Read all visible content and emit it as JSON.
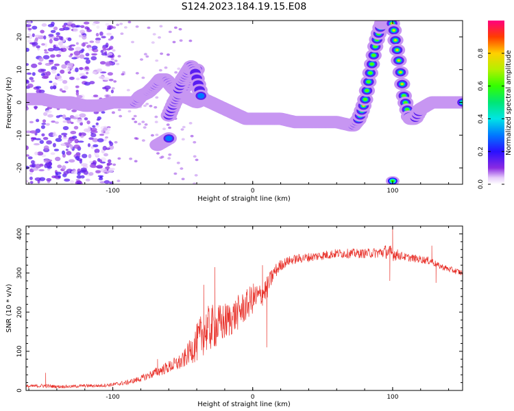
{
  "figure": {
    "title": "S124.2023.184.19.15.E08"
  },
  "chart_data": [
    {
      "type": "heatmap",
      "xlabel": "Height of straight line (km)",
      "ylabel": "Frequency (Hz)",
      "xlim": [
        -162,
        150
      ],
      "ylim": [
        -25,
        25
      ],
      "xticks": [
        -100,
        0,
        100
      ],
      "yticks": [
        -20,
        -10,
        0,
        10,
        20
      ],
      "grid": false,
      "colorbar": {
        "label": "Normalized spectral amplitude",
        "range": [
          0.0,
          1.0
        ],
        "ticks": [
          0.0,
          0.2,
          0.4,
          0.6,
          0.8
        ]
      },
      "ridge": {
        "x": [
          -162,
          -150,
          -140,
          -130,
          -120,
          -110,
          -100,
          -90,
          -84,
          -80,
          -75,
          -70,
          -66,
          -62,
          -56,
          -50,
          -45,
          -40,
          -35,
          -30,
          -25,
          -20,
          -15,
          -10,
          -5,
          0,
          10,
          20,
          30,
          40,
          50,
          60,
          70,
          72,
          76,
          80,
          84,
          88,
          92,
          96,
          100,
          104,
          108,
          112,
          116,
          120,
          124,
          128,
          132,
          136,
          140,
          144,
          150
        ],
        "y": [
          1,
          1,
          0,
          0,
          -1,
          -1,
          0,
          0,
          0,
          2,
          3,
          5,
          7,
          7,
          4,
          2,
          1,
          0,
          1,
          0,
          -1,
          -2,
          -3,
          -4,
          -5,
          -5,
          -5,
          -5,
          -6,
          -6,
          -6,
          -6,
          -7,
          -7,
          -5,
          0,
          9,
          18,
          24,
          25,
          24,
          14,
          2,
          -5,
          -5,
          -2,
          -1,
          0,
          0,
          0,
          0,
          0,
          0
        ],
        "peak": 1.0
      },
      "branches": [
        {
          "x": [
            -60,
            -56,
            -52,
            -48,
            -44,
            -40
          ],
          "y": [
            -4,
            0,
            3,
            5,
            8,
            10
          ],
          "peak": 0.5
        },
        {
          "x": [
            -53,
            -50,
            -47,
            -44,
            -41,
            -37
          ],
          "y": [
            4,
            7,
            9,
            11,
            9,
            2
          ],
          "peak": 0.45
        },
        {
          "x": [
            -68,
            -64,
            -60
          ],
          "y": [
            -13,
            -12,
            -11
          ],
          "peak": 0.45
        }
      ],
      "noise_region": {
        "x": [
          -162,
          -100
        ],
        "level": 0.15
      },
      "bottom_blob": {
        "x": 100,
        "y": -24,
        "peak": 0.6
      }
    },
    {
      "type": "line",
      "xlabel": "Height of straight line (km)",
      "ylabel": "SNR (10 * v/v)",
      "xlim": [
        -162,
        150
      ],
      "ylim": [
        0,
        420
      ],
      "xticks": [
        -100,
        0,
        100
      ],
      "yticks": [
        0,
        100,
        200,
        300,
        400
      ],
      "grid": false,
      "series": [
        {
          "color": "#e8312a",
          "x": [
            -162,
            -150,
            -140,
            -130,
            -120,
            -110,
            -100,
            -90,
            -80,
            -70,
            -60,
            -50,
            -45,
            -40,
            -35,
            -30,
            -25,
            -20,
            -15,
            -10,
            -5,
            0,
            5,
            10,
            15,
            20,
            25,
            30,
            40,
            50,
            60,
            70,
            80,
            90,
            95,
            100,
            105,
            110,
            120,
            128,
            132,
            140,
            150
          ],
          "y": [
            10,
            12,
            10,
            10,
            12,
            12,
            15,
            20,
            30,
            45,
            60,
            75,
            100,
            120,
            150,
            160,
            165,
            175,
            185,
            200,
            215,
            235,
            240,
            260,
            300,
            320,
            330,
            335,
            340,
            345,
            350,
            350,
            350,
            352,
            355,
            350,
            345,
            340,
            335,
            330,
            320,
            310,
            300
          ],
          "noise": [
            4,
            5,
            4,
            4,
            4,
            4,
            5,
            6,
            8,
            12,
            16,
            22,
            30,
            50,
            60,
            60,
            55,
            50,
            45,
            45,
            40,
            40,
            35,
            30,
            20,
            15,
            12,
            12,
            12,
            12,
            12,
            12,
            12,
            14,
            18,
            20,
            12,
            10,
            10,
            10,
            8,
            8,
            8
          ],
          "spikes": [
            {
              "x": -148,
              "y": 45
            },
            {
              "x": -68,
              "y": 80
            },
            {
              "x": -27,
              "y": 315
            },
            {
              "x": -35,
              "y": 270
            },
            {
              "x": 7,
              "y": 320
            },
            {
              "x": 10,
              "y": 110
            },
            {
              "x": 100,
              "y": 420
            },
            {
              "x": 98,
              "y": 280
            },
            {
              "x": 128,
              "y": 370
            },
            {
              "x": 131,
              "y": 275
            }
          ]
        }
      ]
    }
  ]
}
